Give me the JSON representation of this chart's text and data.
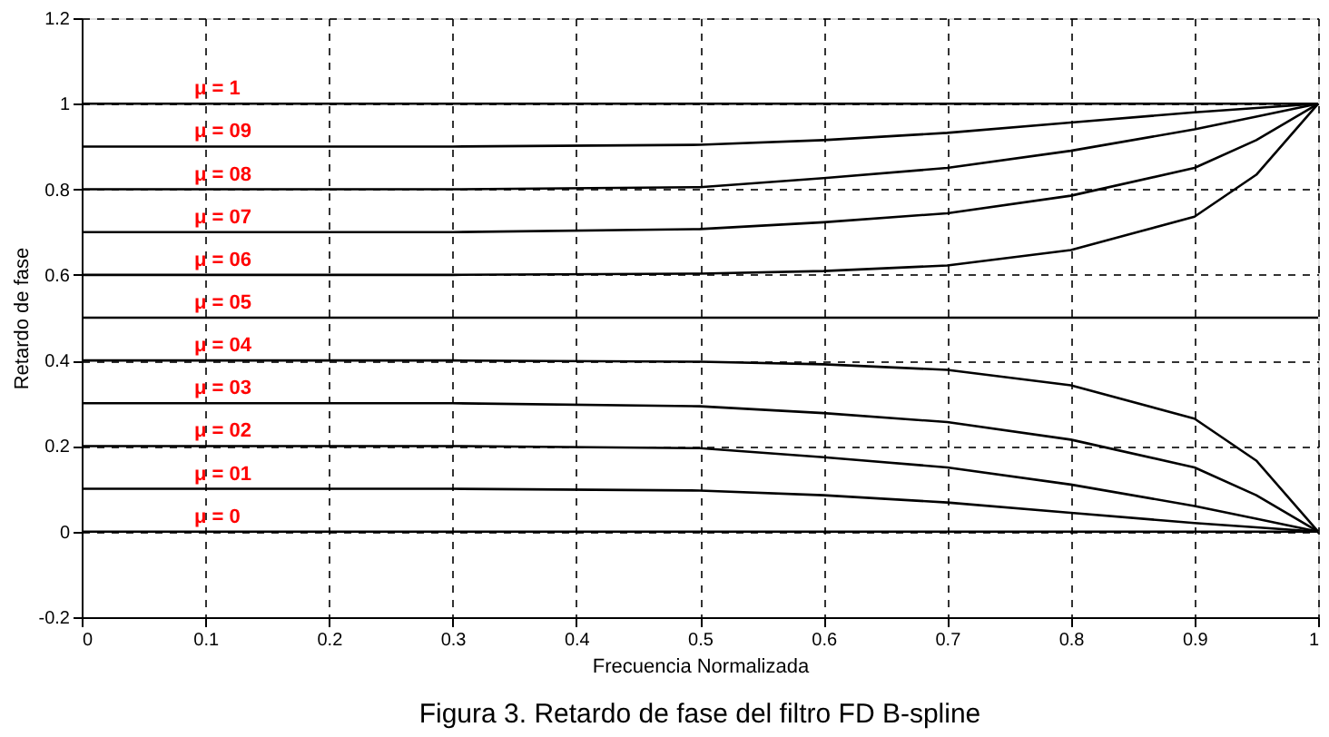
{
  "chart_data": {
    "type": "line",
    "xlabel": "Frecuencia Normalizada",
    "ylabel": "Retardo de fase",
    "x": [
      0,
      0.3,
      0.5,
      0.6,
      0.7,
      0.8,
      0.9,
      0.95,
      1
    ],
    "series": [
      {
        "name": "μ = 1",
        "color": "#000000",
        "values": [
          1,
          1,
          1,
          1,
          1,
          1,
          1,
          1,
          1
        ]
      },
      {
        "name": "μ = 09",
        "color": "#000000",
        "values": [
          0.9,
          0.9,
          0.904,
          0.915,
          0.932,
          0.956,
          0.98,
          0.99,
          1
        ]
      },
      {
        "name": "μ = 08",
        "color": "#000000",
        "values": [
          0.8,
          0.8,
          0.805,
          0.826,
          0.85,
          0.89,
          0.94,
          0.97,
          1
        ]
      },
      {
        "name": "μ = 07",
        "color": "#000000",
        "values": [
          0.7,
          0.7,
          0.707,
          0.723,
          0.744,
          0.785,
          0.85,
          0.915,
          1
        ]
      },
      {
        "name": "μ = 06",
        "color": "#000000",
        "values": [
          0.6,
          0.6,
          0.603,
          0.609,
          0.622,
          0.658,
          0.736,
          0.834,
          1
        ]
      },
      {
        "name": "μ = 05",
        "color": "#000000",
        "values": [
          0.5,
          0.5,
          0.5,
          0.5,
          0.5,
          0.5,
          0.5,
          0.5,
          0.5
        ]
      },
      {
        "name": "μ = 04",
        "color": "#000000",
        "values": [
          0.4,
          0.4,
          0.397,
          0.391,
          0.378,
          0.342,
          0.264,
          0.166,
          0
        ]
      },
      {
        "name": "μ = 03",
        "color": "#000000",
        "values": [
          0.3,
          0.3,
          0.293,
          0.277,
          0.256,
          0.215,
          0.15,
          0.085,
          0
        ]
      },
      {
        "name": "μ = 02",
        "color": "#000000",
        "values": [
          0.2,
          0.2,
          0.195,
          0.174,
          0.15,
          0.11,
          0.06,
          0.03,
          0
        ]
      },
      {
        "name": "μ = 01",
        "color": "#000000",
        "values": [
          0.1,
          0.1,
          0.096,
          0.085,
          0.068,
          0.044,
          0.02,
          0.01,
          0
        ]
      },
      {
        "name": "μ = 0",
        "color": "#000000",
        "values": [
          0,
          0,
          0,
          0,
          0,
          0,
          0,
          0,
          0
        ]
      }
    ],
    "xlim": [
      0,
      1
    ],
    "xticks": [
      0,
      0.1,
      0.2,
      0.3,
      0.4,
      0.5,
      0.6,
      0.7,
      0.8,
      0.9,
      1
    ],
    "ylim": [
      -0.2,
      1.2
    ],
    "yticks": [
      -0.2,
      0,
      0.2,
      0.4,
      0.6,
      0.8,
      1,
      1.2
    ],
    "grid": true,
    "line_style": "solid",
    "marker": "none",
    "legend": false,
    "annotations": [
      "Figura 3. Retardo de fase del filtro FD B-spline"
    ]
  }
}
